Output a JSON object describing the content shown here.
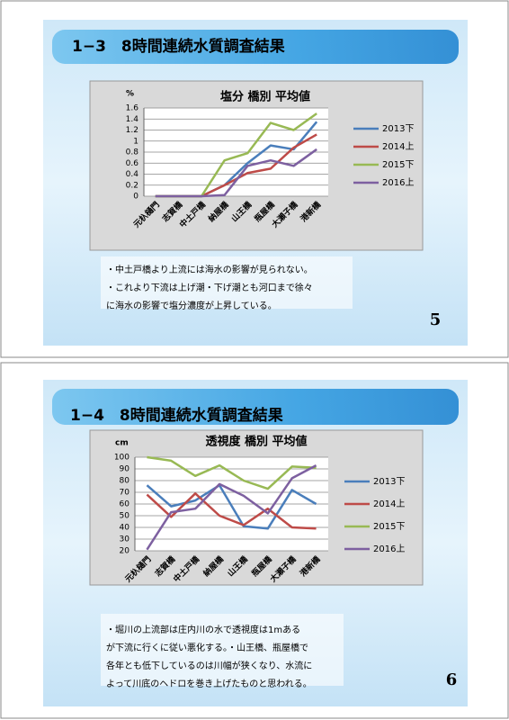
{
  "slides": [
    {
      "title": "1−3　8時間連続水質調査結果",
      "notes": [
        "・中土戸橋より上流には海水の影響が見られない。",
        "・これより下流は上げ潮・下げ潮とも河口まで徐々",
        "に海水の影響で塩分濃度が上昇している。"
      ],
      "page": "5"
    },
    {
      "title": "1−4　8時間連続水質調査結果",
      "notes": [
        "・堀川の上流部は庄内川の水で透視度は1mある",
        "が下流に行くに従い悪化する。・山王橋、瓶屋橋で",
        "各年とも低下しているのは川幅が狭くなり、水流に",
        "よって川底のヘドロを巻き上げたものと思われる。"
      ],
      "page": "6"
    }
  ],
  "chart_data": [
    {
      "type": "line",
      "title": "塩分  橋別  平均値",
      "y_label": "%",
      "categories": [
        "元杁樋門",
        "志賀橋",
        "中土戸橋",
        "納屋橋",
        "山王橋",
        "瓶屋橋",
        "大瀬子橋",
        "港新橋"
      ],
      "ylim": [
        0,
        1.6
      ],
      "yticks": [
        0,
        0.2,
        0.4,
        0.6,
        0.8,
        1,
        1.2,
        1.4,
        1.6
      ],
      "grid": true,
      "legend": "right",
      "series": [
        {
          "name": "2013下",
          "color": "#4a7ebb",
          "values": [
            0,
            0,
            0,
            0.2,
            0.6,
            0.92,
            0.85,
            1.35
          ]
        },
        {
          "name": "2014上",
          "color": "#be4b48",
          "values": [
            0,
            0,
            0,
            0.2,
            0.42,
            0.5,
            0.88,
            1.12
          ]
        },
        {
          "name": "2015下",
          "color": "#98b954",
          "values": [
            0,
            0,
            0,
            0.65,
            0.78,
            1.33,
            1.2,
            1.5
          ]
        },
        {
          "name": "2016上",
          "color": "#7d60a0",
          "values": [
            0,
            0,
            0,
            0.02,
            0.55,
            0.65,
            0.55,
            0.85
          ]
        }
      ]
    },
    {
      "type": "line",
      "title": "透視度  橋別  平均値",
      "y_label": "cm",
      "categories": [
        "元杁樋門",
        "志賀橋",
        "中土戸橋",
        "納屋橋",
        "山王橋",
        "瓶屋橋",
        "大瀬子橋",
        "港新橋"
      ],
      "ylim": [
        20,
        100
      ],
      "yticks": [
        20,
        30,
        40,
        50,
        60,
        70,
        80,
        90,
        100
      ],
      "grid": true,
      "legend": "right",
      "series": [
        {
          "name": "2013下",
          "color": "#4a7ebb",
          "values": [
            76,
            58,
            63,
            76,
            41,
            39,
            72,
            60
          ]
        },
        {
          "name": "2014上",
          "color": "#be4b48",
          "values": [
            68,
            49,
            69,
            50,
            42,
            56,
            40,
            39
          ]
        },
        {
          "name": "2015下",
          "color": "#98b954",
          "values": [
            100,
            97,
            84,
            93,
            80,
            73,
            92,
            91
          ]
        },
        {
          "name": "2016上",
          "color": "#7d60a0",
          "values": [
            21,
            53,
            56,
            77,
            67,
            52,
            82,
            93
          ]
        }
      ]
    }
  ]
}
